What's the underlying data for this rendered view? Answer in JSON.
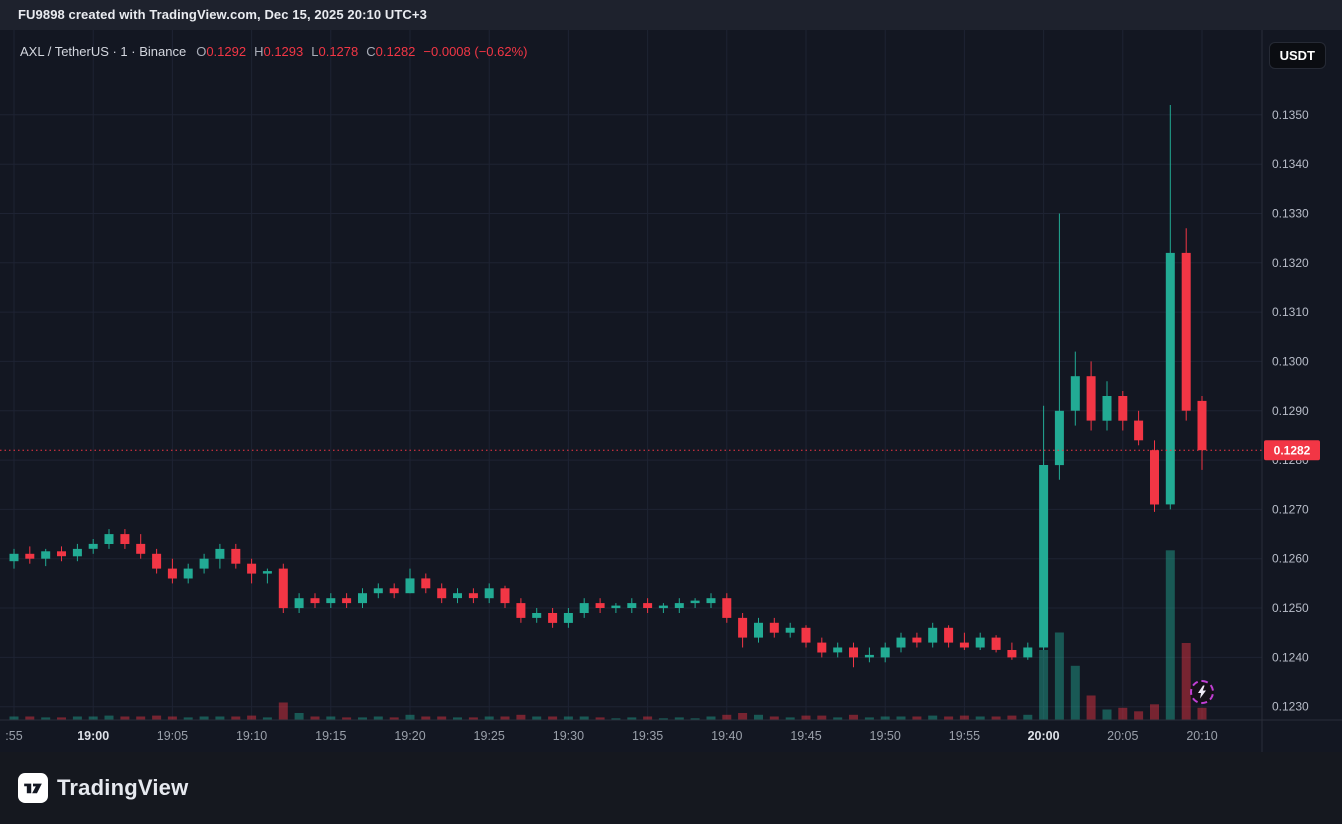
{
  "attribution": {
    "text": "FU9898 created with TradingView.com, Dec 15, 2025 20:10 UTC+3"
  },
  "toolbar": {
    "currency_label": "USDT"
  },
  "legend": {
    "symbol_text": "AXL / TetherUS · 1 · Binance",
    "o_label": "O",
    "o_value": "0.1292",
    "h_label": "H",
    "h_value": "0.1293",
    "l_label": "L",
    "l_value": "0.1278",
    "c_label": "C",
    "c_value": "0.1282",
    "change_text": "−0.0008 (−0.62%)"
  },
  "footer": {
    "brand": "TradingView"
  },
  "colors": {
    "bg": "#131722",
    "grid": "#1e2333",
    "up": "#22ab94",
    "down": "#f23645",
    "vol_up": "rgba(34,171,148,0.45)",
    "vol_down": "rgba(242,54,69,0.45)",
    "badge": "#f23645",
    "price_text": "#b8bdc9",
    "time_text": "#9aa0aa",
    "time_text_bold": "#dde1e8",
    "axis_line": "#2a2e39"
  },
  "chart_data": {
    "type": "candlestick",
    "title": "AXL / TetherUS · 1 · Binance",
    "exchange": "Binance",
    "interval": "1",
    "interval_minutes": 1,
    "start_time": "18:55",
    "grid": true,
    "xlabel": "",
    "ylabel": "",
    "y_axis": {
      "min": 0.12273,
      "max": 0.13672
    },
    "y_ticks": [
      "0.1230",
      "0.1240",
      "0.1250",
      "0.1260",
      "0.1270",
      "0.1280",
      "0.1290",
      "0.1300",
      "0.1310",
      "0.1320",
      "0.1330",
      "0.1340",
      "0.1350"
    ],
    "x_ticks": [
      {
        "index": 0,
        "label": ":55",
        "bold": false
      },
      {
        "index": 5,
        "label": "19:00",
        "bold": true
      },
      {
        "index": 10,
        "label": "19:05",
        "bold": false
      },
      {
        "index": 15,
        "label": "19:10",
        "bold": false
      },
      {
        "index": 20,
        "label": "19:15",
        "bold": false
      },
      {
        "index": 25,
        "label": "19:20",
        "bold": false
      },
      {
        "index": 30,
        "label": "19:25",
        "bold": false
      },
      {
        "index": 35,
        "label": "19:30",
        "bold": false
      },
      {
        "index": 40,
        "label": "19:35",
        "bold": false
      },
      {
        "index": 45,
        "label": "19:40",
        "bold": false
      },
      {
        "index": 50,
        "label": "19:45",
        "bold": false
      },
      {
        "index": 55,
        "label": "19:50",
        "bold": false
      },
      {
        "index": 60,
        "label": "19:55",
        "bold": false
      },
      {
        "index": 65,
        "label": "20:00",
        "bold": true
      },
      {
        "index": 70,
        "label": "20:05",
        "bold": false
      },
      {
        "index": 75,
        "label": "20:10",
        "bold": false
      }
    ],
    "last_price": 0.1282,
    "last_price_label": "0.1282",
    "ohlc": {
      "open": 0.1292,
      "high": 0.1293,
      "low": 0.1278,
      "close": 0.1282,
      "change": -0.0008,
      "change_pct": -0.62
    },
    "candles_format": [
      "open",
      "high",
      "low",
      "close",
      "volume"
    ],
    "candles": [
      [
        0.12595,
        0.1262,
        0.1258,
        0.1261,
        2
      ],
      [
        0.1261,
        0.12625,
        0.1259,
        0.126,
        2
      ],
      [
        0.126,
        0.1262,
        0.12585,
        0.12615,
        1.5
      ],
      [
        0.12615,
        0.12625,
        0.12595,
        0.12605,
        1.5
      ],
      [
        0.12605,
        0.1263,
        0.12595,
        0.1262,
        2
      ],
      [
        0.1262,
        0.1264,
        0.1261,
        0.1263,
        2
      ],
      [
        0.1263,
        0.1266,
        0.1262,
        0.1265,
        2.5
      ],
      [
        0.1265,
        0.1266,
        0.1262,
        0.1263,
        2
      ],
      [
        0.1263,
        0.1265,
        0.126,
        0.1261,
        2
      ],
      [
        0.1261,
        0.1262,
        0.1257,
        0.1258,
        2.5
      ],
      [
        0.1258,
        0.126,
        0.1255,
        0.1256,
        2
      ],
      [
        0.1256,
        0.1259,
        0.1255,
        0.1258,
        1.5
      ],
      [
        0.1258,
        0.1261,
        0.1257,
        0.126,
        2
      ],
      [
        0.126,
        0.1263,
        0.1258,
        0.1262,
        2
      ],
      [
        0.1262,
        0.1263,
        0.1258,
        0.1259,
        2
      ],
      [
        0.1259,
        0.126,
        0.1255,
        0.1257,
        2.5
      ],
      [
        0.1257,
        0.1258,
        0.1255,
        0.12575,
        1.5
      ],
      [
        0.1258,
        0.1259,
        0.1249,
        0.125,
        10
      ],
      [
        0.125,
        0.1253,
        0.1249,
        0.1252,
        4
      ],
      [
        0.1252,
        0.1253,
        0.125,
        0.1251,
        2
      ],
      [
        0.1251,
        0.1253,
        0.125,
        0.1252,
        2
      ],
      [
        0.1252,
        0.1253,
        0.125,
        0.1251,
        1.5
      ],
      [
        0.1251,
        0.1254,
        0.125,
        0.1253,
        1.5
      ],
      [
        0.1253,
        0.1255,
        0.1252,
        0.1254,
        2
      ],
      [
        0.1254,
        0.1255,
        0.1252,
        0.1253,
        1.5
      ],
      [
        0.1253,
        0.1258,
        0.1253,
        0.1256,
        3
      ],
      [
        0.1256,
        0.1257,
        0.1253,
        0.1254,
        2
      ],
      [
        0.1254,
        0.1255,
        0.1251,
        0.1252,
        2
      ],
      [
        0.1252,
        0.1254,
        0.1251,
        0.1253,
        1.5
      ],
      [
        0.1253,
        0.1254,
        0.1251,
        0.1252,
        1.5
      ],
      [
        0.1252,
        0.1255,
        0.1251,
        0.1254,
        2
      ],
      [
        0.1254,
        0.12545,
        0.125,
        0.1251,
        2
      ],
      [
        0.1251,
        0.1252,
        0.1247,
        0.1248,
        3
      ],
      [
        0.1248,
        0.125,
        0.1247,
        0.1249,
        2
      ],
      [
        0.1249,
        0.125,
        0.1246,
        0.1247,
        2
      ],
      [
        0.1247,
        0.125,
        0.1246,
        0.1249,
        2
      ],
      [
        0.1249,
        0.1252,
        0.1248,
        0.1251,
        2
      ],
      [
        0.1251,
        0.1252,
        0.1249,
        0.125,
        1.5
      ],
      [
        0.125,
        0.1251,
        0.1249,
        0.12505,
        1
      ],
      [
        0.125,
        0.1252,
        0.1249,
        0.1251,
        1.5
      ],
      [
        0.1251,
        0.1252,
        0.1249,
        0.125,
        2
      ],
      [
        0.125,
        0.1251,
        0.1249,
        0.12505,
        1
      ],
      [
        0.125,
        0.1252,
        0.1249,
        0.1251,
        1.5
      ],
      [
        0.1251,
        0.1252,
        0.125,
        0.12515,
        1
      ],
      [
        0.1251,
        0.1253,
        0.125,
        0.1252,
        2
      ],
      [
        0.1252,
        0.1253,
        0.1247,
        0.1248,
        3
      ],
      [
        0.1248,
        0.1249,
        0.1242,
        0.1244,
        4
      ],
      [
        0.1244,
        0.1248,
        0.1243,
        0.1247,
        3
      ],
      [
        0.1247,
        0.1248,
        0.1244,
        0.1245,
        2
      ],
      [
        0.1245,
        0.1247,
        0.1244,
        0.1246,
        1.5
      ],
      [
        0.1246,
        0.12465,
        0.1242,
        0.1243,
        2.5
      ],
      [
        0.1243,
        0.1244,
        0.124,
        0.1241,
        2.5
      ],
      [
        0.1241,
        0.1243,
        0.124,
        0.1242,
        1.5
      ],
      [
        0.1242,
        0.1243,
        0.1238,
        0.124,
        3
      ],
      [
        0.124,
        0.1242,
        0.1239,
        0.12405,
        1.5
      ],
      [
        0.124,
        0.1243,
        0.1239,
        0.1242,
        2
      ],
      [
        0.1242,
        0.1245,
        0.1241,
        0.1244,
        2
      ],
      [
        0.1244,
        0.1245,
        0.1242,
        0.1243,
        2
      ],
      [
        0.1243,
        0.1247,
        0.1242,
        0.1246,
        2.5
      ],
      [
        0.1246,
        0.12465,
        0.1242,
        0.1243,
        2
      ],
      [
        0.1243,
        0.1245,
        0.12415,
        0.1242,
        2.5
      ],
      [
        0.1242,
        0.1245,
        0.12415,
        0.1244,
        2
      ],
      [
        0.1244,
        0.12445,
        0.1241,
        0.12415,
        2
      ],
      [
        0.12415,
        0.1243,
        0.12395,
        0.124,
        2.5
      ],
      [
        0.124,
        0.1243,
        0.12395,
        0.1242,
        3
      ],
      [
        0.1242,
        0.1291,
        0.12415,
        0.1279,
        40
      ],
      [
        0.1279,
        0.133,
        0.1276,
        0.129,
        50
      ],
      [
        0.129,
        0.1302,
        0.1287,
        0.1297,
        31
      ],
      [
        0.1297,
        0.13,
        0.1286,
        0.1288,
        14
      ],
      [
        0.1288,
        0.1296,
        0.1286,
        0.1293,
        6
      ],
      [
        0.1293,
        0.1294,
        0.1286,
        0.1288,
        7
      ],
      [
        0.1288,
        0.129,
        0.1283,
        0.1284,
        5
      ],
      [
        0.1282,
        0.1284,
        0.12695,
        0.1271,
        9
      ],
      [
        0.1271,
        0.1352,
        0.127,
        0.1322,
        97
      ],
      [
        0.1322,
        0.1327,
        0.1288,
        0.129,
        44
      ],
      [
        0.1292,
        0.1293,
        0.1278,
        0.1282,
        7
      ]
    ]
  }
}
